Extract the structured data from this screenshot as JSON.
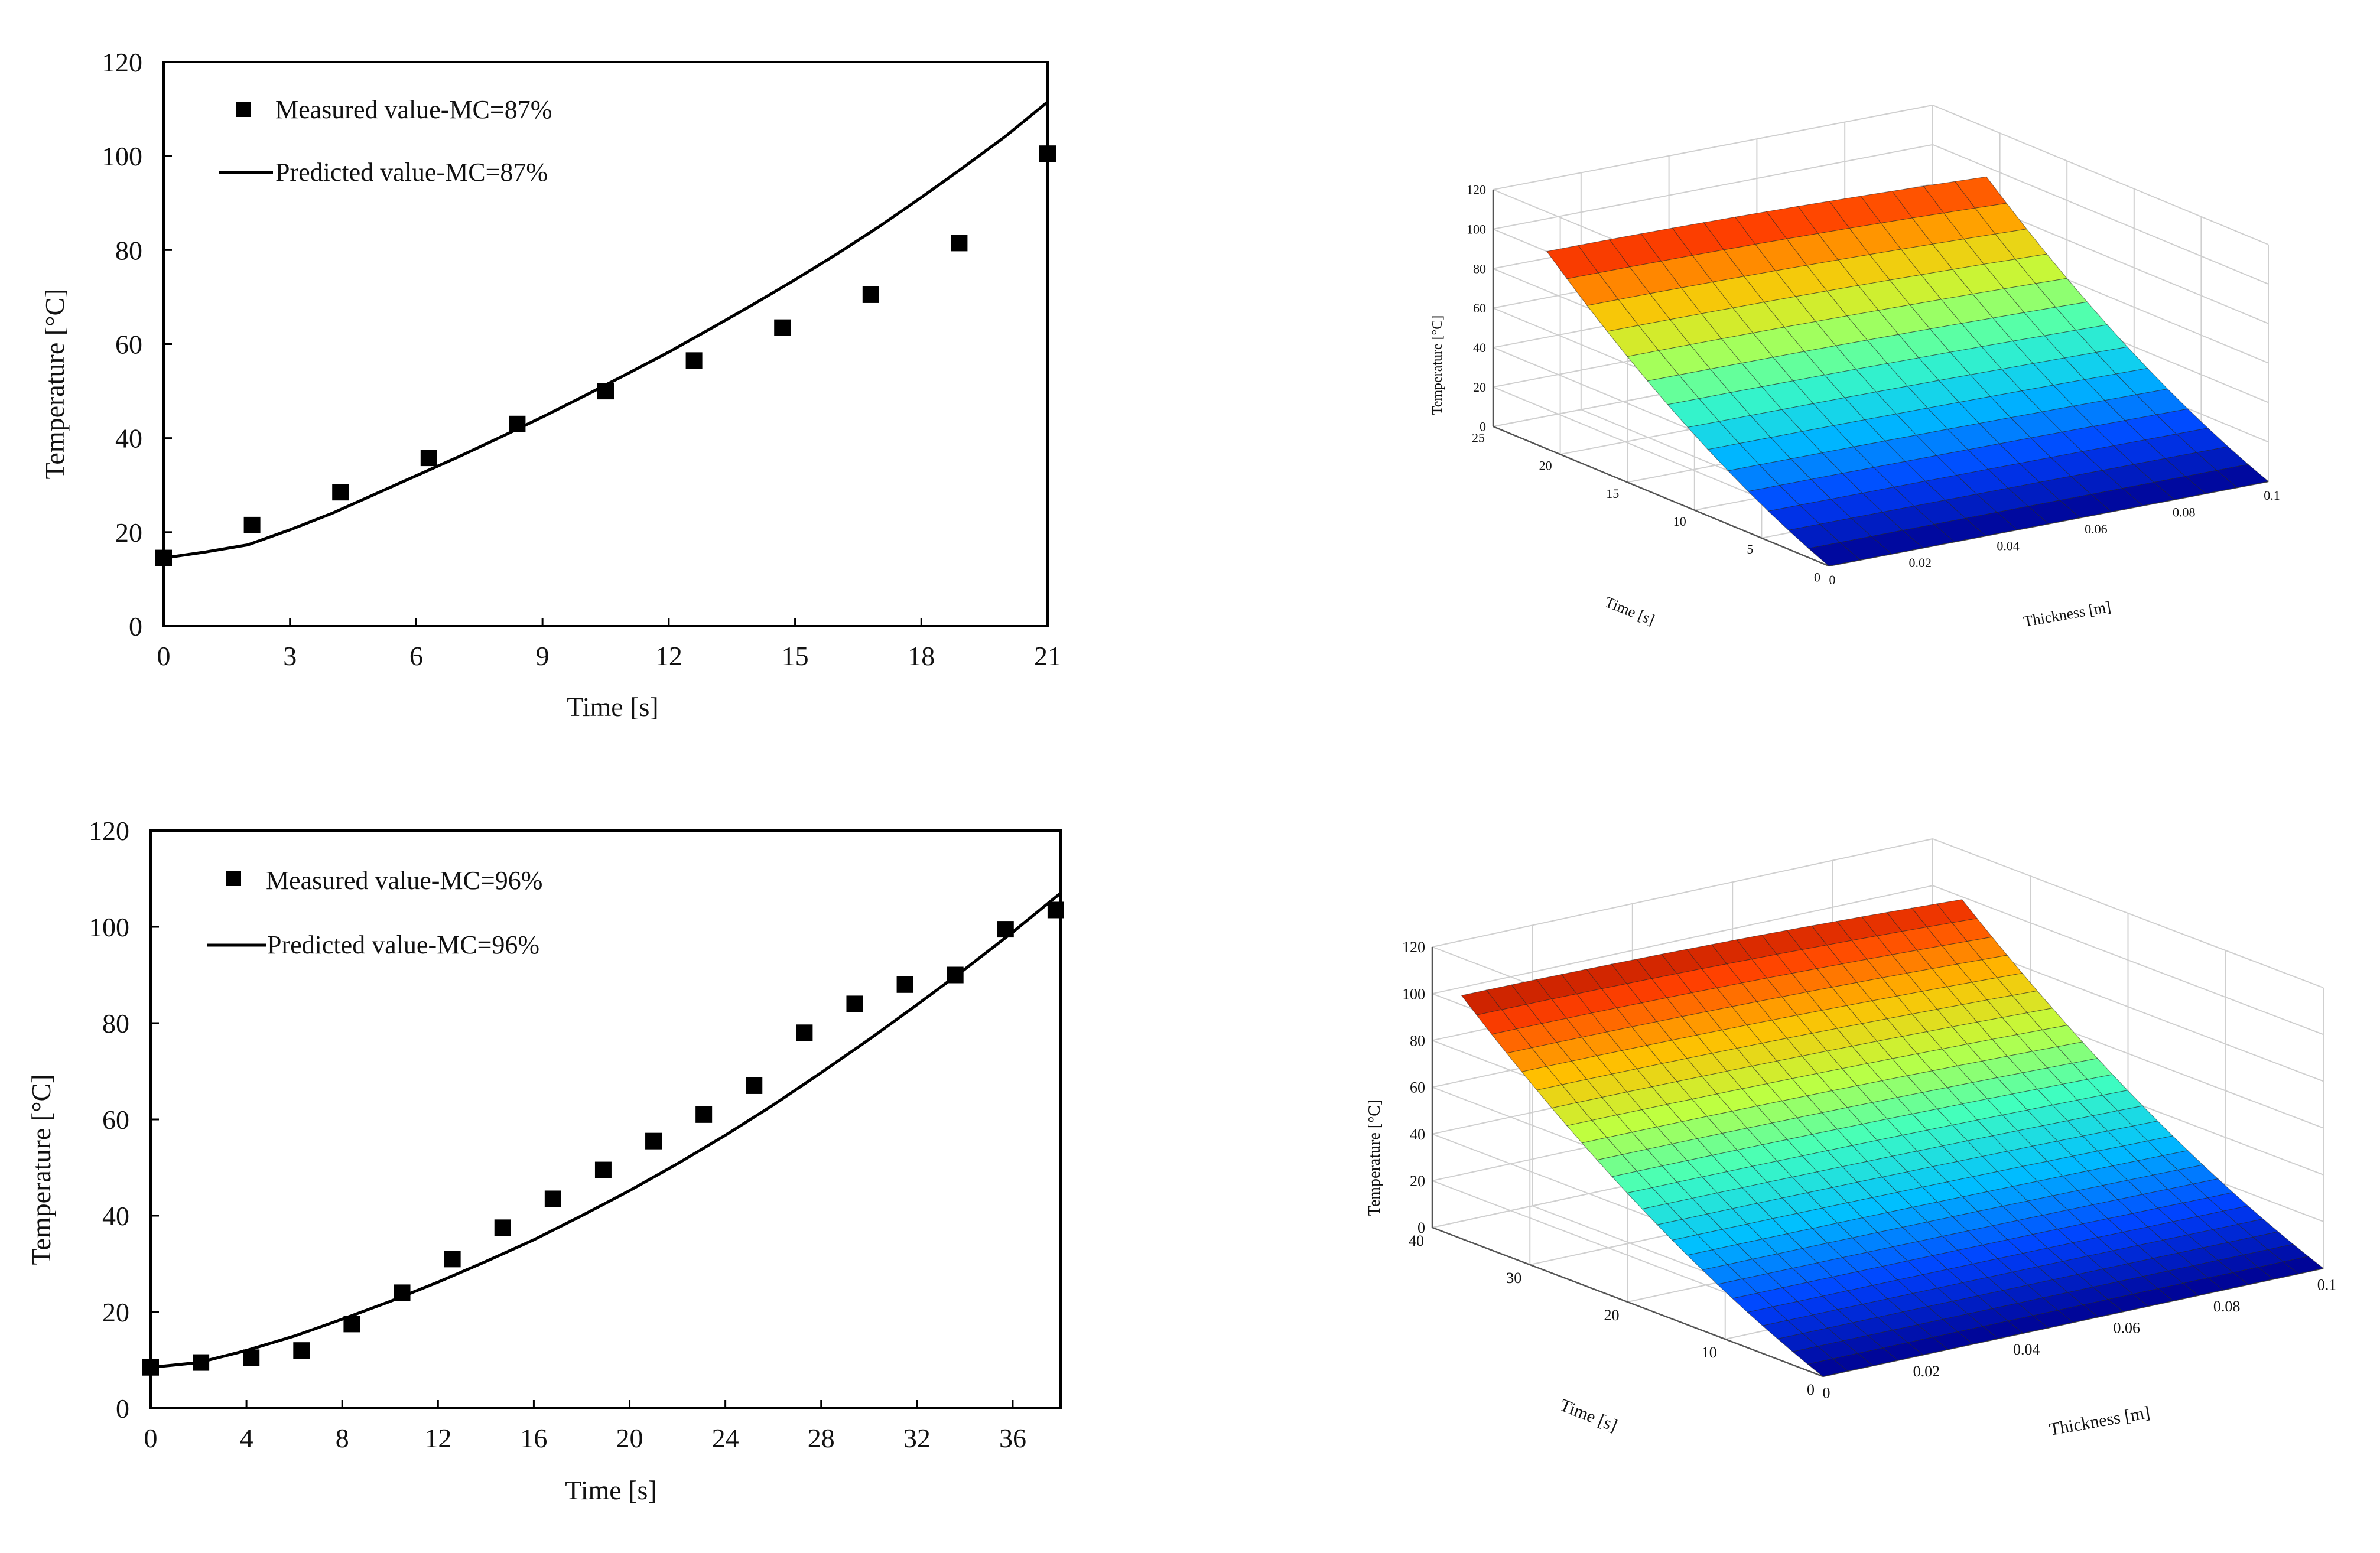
{
  "colors": {
    "ink": "#000000",
    "colormap": [
      "#00008f",
      "#0040ff",
      "#00bfff",
      "#40ffbf",
      "#bfff40",
      "#ffbf00",
      "#ff4000",
      "#8f0000"
    ]
  },
  "chart_data": [
    {
      "id": "chart-a",
      "type": "line",
      "xlabel": "Time [s]",
      "ylabel": "Temperature  [°C]",
      "xlim": [
        0,
        21
      ],
      "ylim": [
        0,
        120
      ],
      "xticks": [
        0,
        3,
        6,
        9,
        12,
        15,
        18,
        21
      ],
      "yticks": [
        0,
        20,
        40,
        60,
        80,
        100,
        120
      ],
      "legend_position": "top-left",
      "series": [
        {
          "name": "Measured value-MC=87%",
          "kind": "scatter",
          "x": [
            0,
            2.1,
            4.2,
            6.3,
            8.4,
            10.5,
            12.6,
            14.7,
            16.8,
            18.9,
            21
          ],
          "y": [
            14.5,
            21.5,
            28.5,
            35.8,
            43,
            50,
            56.5,
            63.5,
            70.5,
            81.5,
            100.5
          ]
        },
        {
          "name": "Predicted value-MC=87%",
          "kind": "line",
          "x": [
            0,
            1,
            2,
            3,
            4,
            5,
            6,
            7,
            8,
            9,
            10,
            11,
            12,
            13,
            14,
            15,
            16,
            17,
            18,
            19,
            20,
            21
          ],
          "y": [
            14.5,
            15.8,
            17.3,
            20.5,
            24,
            28,
            32,
            36,
            40.2,
            44.5,
            49,
            53.6,
            58.3,
            63.3,
            68.4,
            73.7,
            79.2,
            85,
            91.2,
            97.6,
            104.2,
            111.5
          ]
        }
      ]
    },
    {
      "id": "chart-b",
      "type": "line",
      "xlabel": "Time [s]",
      "ylabel": "Temperature  [°C]",
      "xlim": [
        0,
        38
      ],
      "ylim": [
        0,
        120
      ],
      "xticks": [
        0,
        4,
        8,
        12,
        16,
        20,
        24,
        28,
        32,
        36
      ],
      "yticks": [
        0,
        20,
        40,
        60,
        80,
        100,
        120
      ],
      "legend_position": "top-left",
      "series": [
        {
          "name": "Measured value-MC=96%",
          "kind": "scatter",
          "x": [
            0,
            2.1,
            4.2,
            6.3,
            8.4,
            10.5,
            12.6,
            14.7,
            16.8,
            18.9,
            21,
            23.1,
            25.2,
            27.3,
            29.4,
            31.5,
            33.6,
            35.7,
            37.8
          ],
          "y": [
            8.5,
            9.5,
            10.5,
            12,
            17.5,
            24,
            31,
            37.5,
            43.5,
            49.5,
            55.5,
            61,
            67,
            78,
            84,
            88,
            90,
            99.5,
            103.5
          ]
        },
        {
          "name": "Predicted value-MC=96%",
          "kind": "line",
          "x": [
            0,
            2,
            4,
            6,
            8,
            10,
            12,
            14,
            16,
            18,
            20,
            22,
            24,
            26,
            28,
            30,
            32,
            34,
            36,
            38
          ],
          "y": [
            8.5,
            9.5,
            12,
            15,
            18.5,
            22.2,
            26.2,
            30.5,
            35,
            40,
            45.2,
            50.8,
            56.7,
            63,
            69.7,
            76.6,
            83.8,
            91.2,
            98.9,
            107
          ]
        }
      ]
    },
    {
      "id": "surface-a",
      "type": "surface",
      "zlabel": "Temperature [°C]",
      "ylabel": "Time [s]",
      "xlabel": "Thickness [m]",
      "zlim": [
        0,
        120
      ],
      "tlim": [
        0,
        25
      ],
      "thlim": [
        0,
        0.1
      ],
      "zticks": [
        0,
        20,
        40,
        60,
        80,
        100,
        120
      ],
      "tticks": [
        0,
        5,
        10,
        15,
        20,
        25
      ],
      "thicks": [
        0,
        0.02,
        0.04,
        0.06,
        0.08,
        0.1
      ],
      "t_max": 21,
      "z_start": 0,
      "z_end": 100,
      "t_steps": 14,
      "th_steps": 14
    },
    {
      "id": "surface-b",
      "type": "surface",
      "zlabel": "Temperature [°C]",
      "ylabel": "Time [s]",
      "xlabel": "Thickness [m]",
      "zlim": [
        0,
        120
      ],
      "tlim": [
        0,
        40
      ],
      "thlim": [
        0,
        0.1
      ],
      "zticks": [
        0,
        20,
        40,
        60,
        80,
        100,
        120
      ],
      "tticks": [
        0,
        10,
        20,
        30,
        40
      ],
      "thicks": [
        0,
        0.02,
        0.04,
        0.06,
        0.08,
        0.1
      ],
      "t_max": 37,
      "z_start": 0,
      "z_end": 104,
      "t_steps": 24,
      "th_steps": 20
    }
  ]
}
